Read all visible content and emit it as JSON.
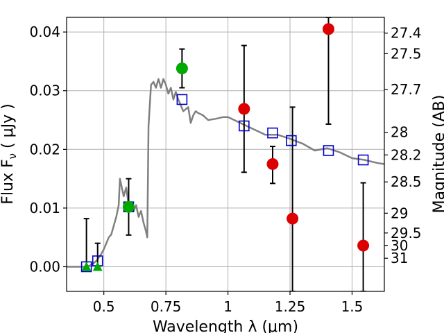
{
  "chart_data": {
    "type": "scatter",
    "xlabel": "Wavelength  λ (μm)",
    "ylabel": "Flux  F",
    "ylabel_sub": "ν",
    "ylabel_unit": "  ( μJy )",
    "y2label": "Magnitude (AB)",
    "xlim": [
      0.35,
      1.63
    ],
    "ylim": [
      -0.0042,
      0.0425
    ],
    "x_ticks": [
      0.5,
      0.75,
      1.0,
      1.25,
      1.5
    ],
    "x_tick_labels": [
      "0.5",
      "0.75",
      "1",
      "1.25",
      "1.5"
    ],
    "y_ticks": [
      0.0,
      0.01,
      0.02,
      0.03,
      0.04
    ],
    "y_tick_labels": [
      "0.00",
      "0.01",
      "0.02",
      "0.03",
      "0.04"
    ],
    "y2_ticks": [
      27.4,
      27.5,
      27.7,
      28,
      28.2,
      28.5,
      29,
      29.5,
      30,
      31
    ],
    "y2_tick_labels": [
      "27.4",
      "27.5",
      "27.7",
      "28",
      "28.2",
      "28.5",
      "29",
      "29.5",
      "30",
      "31"
    ],
    "grid": true,
    "colors": {
      "model": "#808080",
      "model_photometry": "#0000cc",
      "green_points": "#00aa00",
      "red_points": "#dd0000",
      "errorbar": "#000000",
      "grid": "#b0b0b0"
    },
    "series": [
      {
        "kind": "line",
        "x": [
          0.35,
          0.43,
          0.45,
          0.47,
          0.49,
          0.5,
          0.51,
          0.52,
          0.53,
          0.54,
          0.55,
          0.56,
          0.565,
          0.57,
          0.58,
          0.59,
          0.6,
          0.61,
          0.62,
          0.63,
          0.64,
          0.65,
          0.66,
          0.67,
          0.675,
          0.68,
          0.69,
          0.7,
          0.71,
          0.72,
          0.73,
          0.74,
          0.75,
          0.76,
          0.77,
          0.78,
          0.79,
          0.8,
          0.82,
          0.84,
          0.85,
          0.86,
          0.87,
          0.88,
          0.9,
          0.92,
          0.95,
          0.98,
          1.0,
          1.05,
          1.1,
          1.15,
          1.2,
          1.25,
          1.3,
          1.35,
          1.4,
          1.45,
          1.5,
          1.55,
          1.6,
          1.63
        ],
        "y": [
          0.0,
          0.0,
          0.0003,
          0.001,
          0.0022,
          0.003,
          0.004,
          0.005,
          0.0055,
          0.007,
          0.0085,
          0.0105,
          0.015,
          0.014,
          0.012,
          0.0135,
          0.0105,
          0.011,
          0.0095,
          0.0105,
          0.0085,
          0.0095,
          0.0075,
          0.006,
          0.005,
          0.024,
          0.031,
          0.0315,
          0.0305,
          0.032,
          0.0305,
          0.032,
          0.031,
          0.0295,
          0.0305,
          0.0285,
          0.0298,
          0.0285,
          0.0265,
          0.0272,
          0.0245,
          0.0258,
          0.0265,
          0.0262,
          0.0258,
          0.025,
          0.0252,
          0.0255,
          0.0255,
          0.0245,
          0.0235,
          0.0225,
          0.0225,
          0.0218,
          0.021,
          0.0198,
          0.0202,
          0.0195,
          0.0185,
          0.0182,
          0.0177,
          0.0175
        ]
      },
      {
        "kind": "points",
        "marker": "square-open",
        "x": [
          0.43,
          0.475,
          0.6,
          0.815,
          1.065,
          1.18,
          1.255,
          1.405,
          1.545
        ],
        "y": [
          0.0,
          0.001,
          0.0102,
          0.0285,
          0.024,
          0.0228,
          0.0215,
          0.0198,
          0.0182
        ]
      },
      {
        "kind": "points",
        "marker": "circle",
        "color_key": "green_points",
        "x": [
          0.6,
          0.815
        ],
        "y": [
          0.0102,
          0.0338
        ],
        "yerr_low": [
          0.0048,
          0.0033
        ],
        "yerr_high": [
          0.0048,
          0.0033
        ]
      },
      {
        "kind": "points",
        "marker": "triangle-up",
        "color_key": "green_points",
        "x": [
          0.43,
          0.475
        ],
        "y": [
          0.0,
          0.0
        ],
        "yerr_low": [
          0.0,
          0.0
        ],
        "yerr_high": [
          0.0082,
          0.004
        ]
      },
      {
        "kind": "points",
        "marker": "circle",
        "color_key": "red_points",
        "x": [
          1.065,
          1.18,
          1.26,
          1.405,
          1.545
        ],
        "y": [
          0.0269,
          0.0175,
          0.0082,
          0.0405,
          0.0036
        ],
        "yerr_low": [
          0.0108,
          0.0033,
          0.0124,
          0.0162,
          0.0078
        ],
        "yerr_high": [
          0.0108,
          0.003,
          0.019,
          0.002,
          0.0107
        ]
      }
    ]
  }
}
